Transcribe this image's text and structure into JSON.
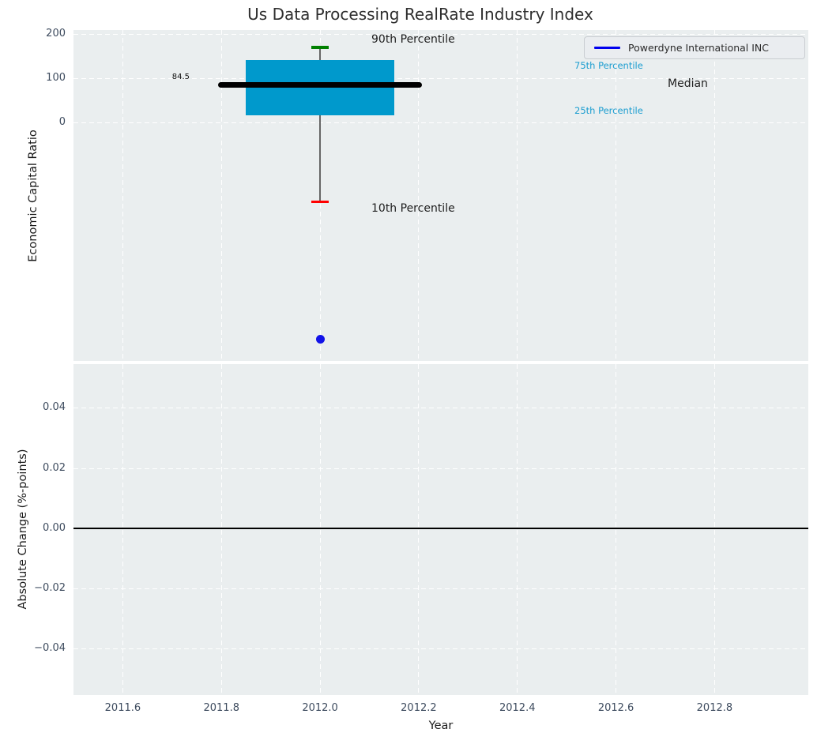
{
  "title": "Us Data Processing RealRate Industry Index",
  "legend": {
    "label": "Powerdyne International INC",
    "line_color": "#0000ee",
    "position": "upper right"
  },
  "annotations": {
    "p90": "90th Percentile",
    "p75": "75th Percentile",
    "median": "Median",
    "p25": "25th Percentile",
    "p10": "10th Percentile",
    "median_value_label": "84.5"
  },
  "colors": {
    "axes_background": "#eaeeef",
    "grid": "#ffffff",
    "tick_label": "#3d4b5e",
    "box_fill": "#0099cc",
    "median_line": "#000000",
    "whisker": "#666666",
    "p90_cap": "#008000",
    "p10_cap": "#ff0000",
    "company_point": "#1212e8",
    "zero_line": "#000000",
    "percentile_label": "#1b9dd0"
  },
  "chart_data": [
    {
      "type": "boxplot",
      "title": "Us Data Processing RealRate Industry Index",
      "ylabel": "Economic Capital Ratio",
      "grid": "dashed-white",
      "legend_position": "upper right",
      "xlim": [
        2011.5,
        2012.99
      ],
      "ylim": [
        -539,
        209
      ],
      "x_tick_values": [
        2011.6,
        2011.8,
        2012.0,
        2012.2,
        2012.4,
        2012.6,
        2012.8
      ],
      "y_tick_values": [
        200,
        100,
        0
      ],
      "y_tick_labels": [
        "200",
        "100",
        "0"
      ],
      "box": {
        "x": 2012.0,
        "p10": -179,
        "p25": 16,
        "median": 84.5,
        "p75": 142,
        "p90": 170,
        "box_halfwidth": 0.15,
        "median_halfwidth": 0.2,
        "cap_halfwidth": 0.018
      },
      "series": [
        {
          "name": "Powerdyne International INC",
          "type": "scatter",
          "x": [
            2012.0
          ],
          "y": [
            -490
          ]
        }
      ]
    },
    {
      "type": "line",
      "ylabel": "Absolute Change (%-points)",
      "xlabel": "Year",
      "grid": "dashed-white",
      "xlim": [
        2011.5,
        2012.99
      ],
      "ylim": [
        -0.0553,
        0.0547
      ],
      "x_tick_values": [
        2011.6,
        2011.8,
        2012.0,
        2012.2,
        2012.4,
        2012.6,
        2012.8
      ],
      "x_tick_labels": [
        "2011.6",
        "2011.8",
        "2012.0",
        "2012.2",
        "2012.4",
        "2012.6",
        "2012.8"
      ],
      "y_tick_values": [
        0.04,
        0.02,
        0.0,
        -0.02,
        -0.04
      ],
      "y_tick_labels": [
        "0.04",
        "0.02",
        "0.00",
        "−0.02",
        "−0.04"
      ],
      "zero_line": 0.0,
      "series": []
    }
  ]
}
